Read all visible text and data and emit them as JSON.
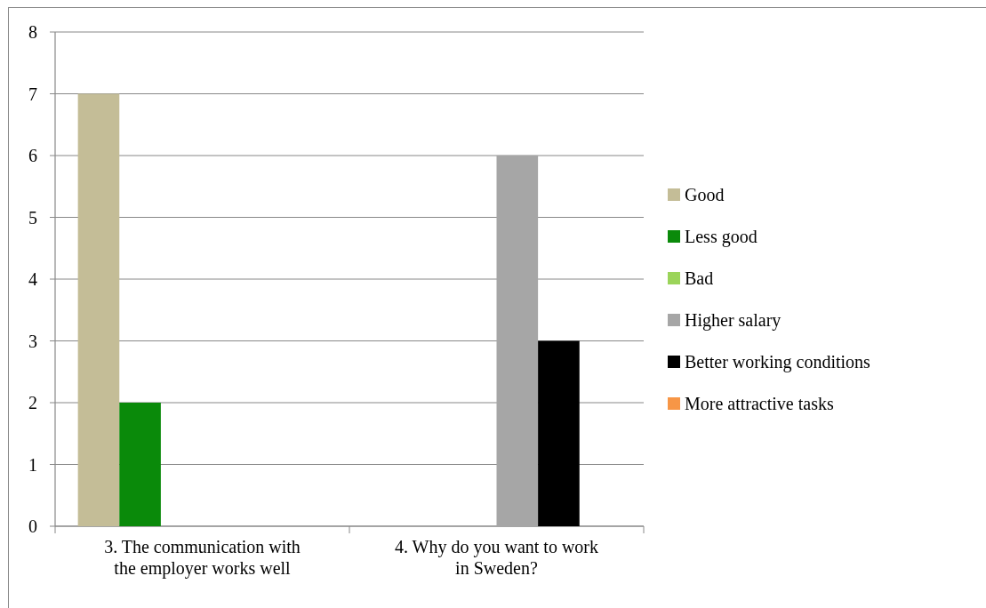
{
  "chart_data": {
    "type": "bar",
    "categories": [
      "3. The communication with the employer works well",
      "4. Why do you want to work in Sweden?"
    ],
    "series": [
      {
        "name": "Good",
        "color": "#c4bd97",
        "values": [
          7,
          0
        ]
      },
      {
        "name": "Less good",
        "color": "#0a8a0a",
        "values": [
          2,
          0
        ]
      },
      {
        "name": "Bad",
        "color": "#9bd45a",
        "values": [
          0,
          0
        ]
      },
      {
        "name": "Higher salary",
        "color": "#a6a6a6",
        "values": [
          0,
          6
        ]
      },
      {
        "name": "Better working conditions",
        "color": "#000000",
        "values": [
          0,
          3
        ]
      },
      {
        "name": "More attractive tasks",
        "color": "#f79646",
        "values": [
          0,
          0
        ]
      }
    ],
    "ylim": [
      0,
      8
    ],
    "yticks": [
      0,
      1,
      2,
      3,
      4,
      5,
      6,
      7,
      8
    ],
    "grid": "y",
    "legend": "right"
  }
}
